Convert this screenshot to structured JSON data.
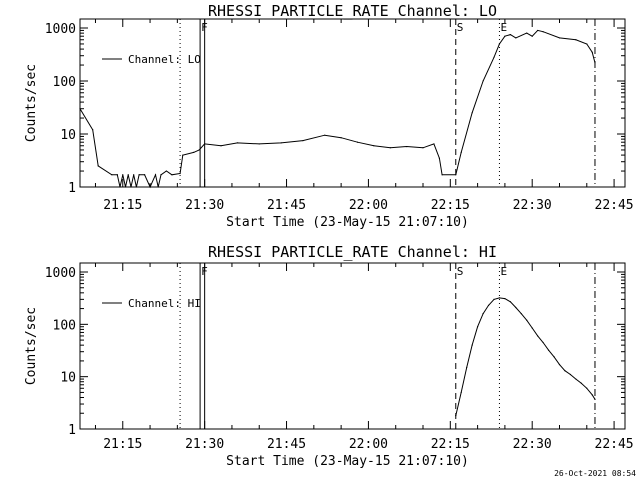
{
  "chart_data": [
    {
      "type": "line",
      "title": "RHESSI PARTICLE_RATE Channel: LO",
      "xlabel": "Start Time (23-May-15 21:07:10)",
      "ylabel": "Counts/sec",
      "y_scale": "log",
      "ylim": [
        1,
        1000
      ],
      "xlim": [
        "21:07:10",
        "22:47:00"
      ],
      "x_ticks": [
        "21:15",
        "21:30",
        "21:45",
        "22:00",
        "22:15",
        "22:30",
        "22:45"
      ],
      "y_ticks": [
        "1",
        "10",
        "100",
        "1000"
      ],
      "legend": {
        "label": "Channel: LO",
        "position": "upper-left"
      },
      "markers": [
        {
          "label": "",
          "time": "21:25:30",
          "style": "dotted"
        },
        {
          "label": "F",
          "time": "21:29:10",
          "style": "solid"
        },
        {
          "label": "",
          "time": "21:30:00",
          "style": "solid"
        },
        {
          "label": "S",
          "time": "22:16:00",
          "style": "dashed"
        },
        {
          "label": "E",
          "time": "22:24:00",
          "style": "dotted"
        },
        {
          "label": "",
          "time": "22:41:30",
          "style": "dash-dot"
        }
      ],
      "series": [
        {
          "name": "Channel: LO",
          "x": [
            "21:07:10",
            "21:09:30",
            "21:10:30",
            "21:13:00",
            "21:14:00",
            "21:14:30",
            "21:15:00",
            "21:15:30",
            "21:16:00",
            "21:16:30",
            "21:17:00",
            "21:17:30",
            "21:18:00",
            "21:19:00",
            "21:20:00",
            "21:21:00",
            "21:21:30",
            "21:22:00",
            "21:23:00",
            "21:24:00",
            "21:25:30",
            "21:26:00",
            "21:28:00",
            "21:29:00",
            "21:30:00",
            "21:33:00",
            "21:36:00",
            "21:40:00",
            "21:44:00",
            "21:48:00",
            "21:52:00",
            "21:55:00",
            "21:58:00",
            "22:01:00",
            "22:04:00",
            "22:07:00",
            "22:10:00",
            "22:12:00",
            "22:13:00",
            "22:13:30",
            "22:16:00",
            "22:17:00",
            "22:19:00",
            "22:21:00",
            "22:23:00",
            "22:24:00",
            "22:25:00",
            "22:26:00",
            "22:27:00",
            "22:29:00",
            "22:30:00",
            "22:31:00",
            "22:32:00",
            "22:35:00",
            "22:38:00",
            "22:40:00",
            "22:41:00",
            "22:41:30"
          ],
          "values": [
            30,
            12,
            2.5,
            1.7,
            1.7,
            1.0,
            1.7,
            1.0,
            1.7,
            1.0,
            1.7,
            1.0,
            1.7,
            1.7,
            1.0,
            1.7,
            1.0,
            1.7,
            2.0,
            1.7,
            1.8,
            4.0,
            4.5,
            5.0,
            6.5,
            6.0,
            6.8,
            6.5,
            6.8,
            7.5,
            9.5,
            8.5,
            7.0,
            6.0,
            5.5,
            5.8,
            5.5,
            6.5,
            3.5,
            1.7,
            1.7,
            4.5,
            25,
            100,
            280,
            500,
            700,
            750,
            650,
            800,
            700,
            900,
            850,
            650,
            600,
            500,
            350,
            220
          ]
        }
      ]
    },
    {
      "type": "line",
      "title": "RHESSI PARTICLE_RATE Channel: HI",
      "xlabel": "Start Time (23-May-15 21:07:10)",
      "ylabel": "Counts/sec",
      "y_scale": "log",
      "ylim": [
        1,
        1000
      ],
      "xlim": [
        "21:07:10",
        "22:47:00"
      ],
      "x_ticks": [
        "21:15",
        "21:30",
        "21:45",
        "22:00",
        "22:15",
        "22:30",
        "22:45"
      ],
      "y_ticks": [
        "1",
        "10",
        "100",
        "1000"
      ],
      "legend": {
        "label": "Channel: HI",
        "position": "upper-left"
      },
      "markers": [
        {
          "label": "",
          "time": "21:25:30",
          "style": "dotted"
        },
        {
          "label": "F",
          "time": "21:29:10",
          "style": "solid"
        },
        {
          "label": "",
          "time": "21:30:00",
          "style": "solid"
        },
        {
          "label": "S",
          "time": "22:16:00",
          "style": "dashed"
        },
        {
          "label": "E",
          "time": "22:24:00",
          "style": "dotted"
        },
        {
          "label": "",
          "time": "22:41:30",
          "style": "dash-dot"
        }
      ],
      "series": [
        {
          "name": "Channel: HI",
          "x": [
            "22:16:00",
            "22:17:00",
            "22:18:00",
            "22:19:00",
            "22:20:00",
            "22:21:00",
            "22:22:00",
            "22:23:00",
            "22:24:00",
            "22:25:00",
            "22:26:00",
            "22:27:00",
            "22:28:00",
            "22:29:00",
            "22:30:00",
            "22:31:00",
            "22:32:00",
            "22:33:00",
            "22:34:00",
            "22:35:00",
            "22:36:00",
            "22:37:00",
            "22:38:00",
            "22:39:00",
            "22:40:00",
            "22:41:00",
            "22:41:30"
          ],
          "values": [
            1.8,
            5,
            15,
            40,
            90,
            160,
            230,
            300,
            320,
            310,
            270,
            210,
            160,
            120,
            85,
            60,
            45,
            32,
            24,
            17,
            13,
            11,
            9,
            7.5,
            6,
            4.5,
            3.7
          ]
        }
      ]
    }
  ],
  "timestamp": "26-Oct-2021 08:54"
}
